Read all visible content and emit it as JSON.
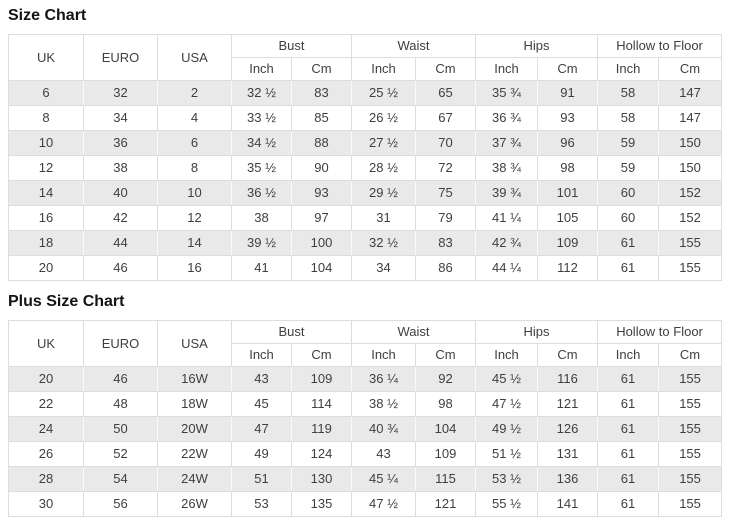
{
  "colors": {
    "stripe_row_background": "#e9e9e9",
    "table_border": "#dddddd",
    "cell_text": "#3f3f3f",
    "title_text": "#141414",
    "page_background": "#ffffff"
  },
  "tables": [
    {
      "title": "Size Chart",
      "header": {
        "simple": [
          "UK",
          "EURO",
          "USA"
        ],
        "groups": [
          "Bust",
          "Waist",
          "Hips",
          "Hollow to Floor"
        ],
        "subs": [
          "Inch",
          "Cm"
        ]
      },
      "rows": [
        [
          "6",
          "32",
          "2",
          "32 ½",
          "83",
          "25 ½",
          "65",
          "35 ¾",
          "91",
          "58",
          "147"
        ],
        [
          "8",
          "34",
          "4",
          "33 ½",
          "85",
          "26 ½",
          "67",
          "36 ¾",
          "93",
          "58",
          "147"
        ],
        [
          "10",
          "36",
          "6",
          "34 ½",
          "88",
          "27 ½",
          "70",
          "37 ¾",
          "96",
          "59",
          "150"
        ],
        [
          "12",
          "38",
          "8",
          "35 ½",
          "90",
          "28 ½",
          "72",
          "38 ¾",
          "98",
          "59",
          "150"
        ],
        [
          "14",
          "40",
          "10",
          "36 ½",
          "93",
          "29 ½",
          "75",
          "39 ¾",
          "101",
          "60",
          "152"
        ],
        [
          "16",
          "42",
          "12",
          "38",
          "97",
          "31",
          "79",
          "41 ¼",
          "105",
          "60",
          "152"
        ],
        [
          "18",
          "44",
          "14",
          "39 ½",
          "100",
          "32 ½",
          "83",
          "42 ¾",
          "109",
          "61",
          "155"
        ],
        [
          "20",
          "46",
          "16",
          "41",
          "104",
          "34",
          "86",
          "44 ¼",
          "112",
          "61",
          "155"
        ]
      ]
    },
    {
      "title": "Plus Size Chart",
      "header": {
        "simple": [
          "UK",
          "EURO",
          "USA"
        ],
        "groups": [
          "Bust",
          "Waist",
          "Hips",
          "Hollow to Floor"
        ],
        "subs": [
          "Inch",
          "Cm"
        ]
      },
      "rows": [
        [
          "20",
          "46",
          "16W",
          "43",
          "109",
          "36 ¼",
          "92",
          "45 ½",
          "116",
          "61",
          "155"
        ],
        [
          "22",
          "48",
          "18W",
          "45",
          "114",
          "38 ½",
          "98",
          "47 ½",
          "121",
          "61",
          "155"
        ],
        [
          "24",
          "50",
          "20W",
          "47",
          "119",
          "40 ¾",
          "104",
          "49 ½",
          "126",
          "61",
          "155"
        ],
        [
          "26",
          "52",
          "22W",
          "49",
          "124",
          "43",
          "109",
          "51 ½",
          "131",
          "61",
          "155"
        ],
        [
          "28",
          "54",
          "24W",
          "51",
          "130",
          "45 ¼",
          "115",
          "53 ½",
          "136",
          "61",
          "155"
        ],
        [
          "30",
          "56",
          "26W",
          "53",
          "135",
          "47 ½",
          "121",
          "55 ½",
          "141",
          "61",
          "155"
        ]
      ]
    }
  ]
}
